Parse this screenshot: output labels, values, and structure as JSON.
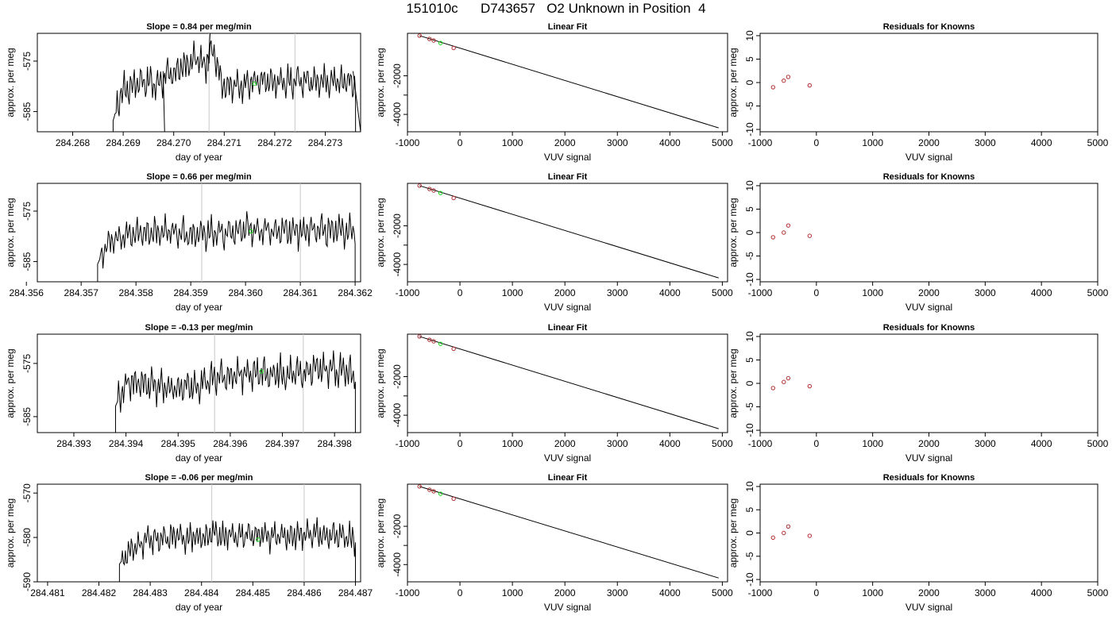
{
  "page_title": "151010c      D743657   O2 Unknown in Position  4",
  "chart_data": [
    {
      "type": "line",
      "title": "Slope =  0.84  per meg/min",
      "xlabel": "day of year",
      "ylabel": "approx. per meg",
      "xlim": [
        284.2673,
        284.2737
      ],
      "ylim": [
        -589,
        -569.5
      ],
      "x_ticks": [
        "284.268",
        "284.269",
        "284.270",
        "284.271",
        "284.272",
        "284.273"
      ],
      "y_ticks": [
        "-575",
        "-585"
      ],
      "vlines": [
        284.2707,
        284.2724
      ],
      "marker": {
        "x": 284.2716,
        "y": -579.5
      },
      "series_x": [
        284.2688,
        284.2736
      ],
      "trace_level": [
        -586.8,
        -581,
        -580,
        -579.2,
        -578.8,
        -579.8,
        -578.4,
        -577.8,
        -576.5,
        -575.6,
        -574.3,
        -576,
        -572,
        -579.5,
        -580.2,
        -579.8,
        -579.4,
        -579.1,
        -579.2,
        -579.4,
        -579.3,
        -579,
        -578.9,
        -579,
        -578.8,
        -578.9,
        -579.1,
        -578.9,
        -579.2,
        -579.4
      ],
      "gaps": [
        [
          284.26979,
          284.26982,
          -589
        ],
        [
          284.27068,
          284.27072,
          -569.5
        ],
        [
          284.27355,
          284.2737,
          -589
        ]
      ]
    },
    {
      "type": "line",
      "title": "Slope =  0.66  per meg/min",
      "xlabel": "day of year",
      "ylabel": "approx. per meg",
      "xlim": [
        284.3562,
        284.3621
      ],
      "ylim": [
        -589,
        -569.5
      ],
      "x_ticks": [
        "284.356",
        "284.357",
        "284.358",
        "284.359",
        "284.360",
        "284.361",
        "284.362"
      ],
      "y_ticks": [
        "-575",
        "-585"
      ],
      "vlines": [
        284.3592,
        284.361
      ],
      "marker": {
        "x": 284.3601,
        "y": -579
      },
      "series_x": [
        284.3573,
        284.362
      ],
      "trace_level": [
        -585.5,
        -581.5,
        -580.5,
        -579.9,
        -579.5,
        -579.3,
        -579.1,
        -579,
        -579.2,
        -579.4,
        -579.6,
        -579.5,
        -579.6,
        -579.4,
        -579.2,
        -579,
        -578.9,
        -578.7,
        -578.7,
        -578.8,
        -578.9,
        -579.1,
        -579,
        -578.9,
        -579,
        -579.1,
        -578.7,
        -578.6,
        -578.7,
        -579
      ]
    },
    {
      "type": "line",
      "title": "Slope =  -0.13  per meg/min",
      "xlabel": "day of year",
      "ylabel": "approx. per meg",
      "xlim": [
        284.3923,
        284.3985
      ],
      "ylim": [
        -588,
        -569.5
      ],
      "x_ticks": [
        "284.393",
        "284.394",
        "284.395",
        "284.396",
        "284.397",
        "284.398"
      ],
      "y_ticks": [
        "-575",
        "-585"
      ],
      "vlines": [
        284.3957,
        284.3974
      ],
      "marker": {
        "x": 284.3966,
        "y": -576.5
      },
      "series_x": [
        284.3938,
        284.3984
      ],
      "trace_level": [
        -583,
        -579.5,
        -578.4,
        -578.5,
        -579,
        -579.5,
        -579.6,
        -579.5,
        -579.7,
        -579.3,
        -578.9,
        -578.3,
        -577.8,
        -577.5,
        -577.2,
        -577,
        -577.1,
        -576.9,
        -576.8,
        -576.9,
        -577,
        -577.3,
        -577.1,
        -576.8,
        -576.2,
        -576,
        -575.8,
        -576.3,
        -576.6,
        -577.1
      ]
    },
    {
      "type": "line",
      "title": "Slope =  -0.06  per meg/min",
      "xlabel": "day of year",
      "ylabel": "approx. per meg",
      "xlim": [
        284.4808,
        284.4871
      ],
      "ylim": [
        -590,
        -568
      ],
      "x_ticks": [
        "284.481",
        "284.482",
        "284.483",
        "284.484",
        "284.485",
        "284.486",
        "284.487"
      ],
      "y_ticks": [
        "-570",
        "-580",
        "-590"
      ],
      "vlines": [
        284.4842,
        284.486
      ],
      "marker": {
        "x": 284.4851,
        "y": -580.5
      },
      "series_x": [
        284.4824,
        284.487
      ],
      "trace_level": [
        -586,
        -583.5,
        -582,
        -580.8,
        -580.5,
        -580.3,
        -579.8,
        -579.7,
        -579.9,
        -580,
        -579.8,
        -579.5,
        -579.3,
        -579.5,
        -579.8,
        -579.7,
        -579.6,
        -579.5,
        -579.6,
        -579.8,
        -579.7,
        -579.4,
        -579.5,
        -579.6,
        -579.5,
        -579.3,
        -579.6,
        -579.8,
        -579.9,
        -580.2
      ]
    },
    {
      "type": "scatter",
      "title": "Linear Fit",
      "xlabel": "VUV signal",
      "ylabel": "approx. per meg",
      "xlim": [
        -1000,
        5100
      ],
      "ylim": [
        -4900,
        200
      ],
      "x_ticks": [
        -1000,
        0,
        1000,
        2000,
        3000,
        4000,
        5000
      ],
      "y_ticks": [
        -2000,
        -3000,
        -4000
      ],
      "y_ticks_shown": [
        "-2000",
        "-4000"
      ],
      "known_points": [
        {
          "x": -770,
          "y": 80
        },
        {
          "x": -580,
          "y": -90
        },
        {
          "x": -500,
          "y": -170
        },
        {
          "x": -120,
          "y": -560
        }
      ],
      "unknown_point": {
        "x": -370,
        "y": -300
      },
      "fit_line": {
        "x": [
          -770,
          4930
        ],
        "y": [
          80,
          -4700
        ]
      }
    },
    {
      "type": "scatter",
      "title": "Linear Fit",
      "xlabel": "VUV signal",
      "ylabel": "approx. per meg",
      "xlim": [
        -1000,
        5100
      ],
      "ylim": [
        -4900,
        200
      ],
      "x_ticks": [
        -1000,
        0,
        1000,
        2000,
        3000,
        4000,
        5000
      ],
      "y_ticks": [
        -2000,
        -3000,
        -4000
      ],
      "y_ticks_shown": [
        "-2000",
        "-4000"
      ],
      "known_points": [
        {
          "x": -770,
          "y": 80
        },
        {
          "x": -580,
          "y": -90
        },
        {
          "x": -500,
          "y": -170
        },
        {
          "x": -120,
          "y": -560
        }
      ],
      "unknown_point": {
        "x": -370,
        "y": -300
      },
      "fit_line": {
        "x": [
          -770,
          4930
        ],
        "y": [
          80,
          -4700
        ]
      }
    },
    {
      "type": "scatter",
      "title": "Linear Fit",
      "xlabel": "VUV signal",
      "ylabel": "approx. per meg",
      "xlim": [
        -1000,
        5100
      ],
      "ylim": [
        -4900,
        200
      ],
      "x_ticks": [
        -1000,
        0,
        1000,
        2000,
        3000,
        4000,
        5000
      ],
      "y_ticks": [
        -2000,
        -3000,
        -4000
      ],
      "y_ticks_shown": [
        "-2000",
        "-4000"
      ],
      "known_points": [
        {
          "x": -770,
          "y": 80
        },
        {
          "x": -580,
          "y": -90
        },
        {
          "x": -500,
          "y": -170
        },
        {
          "x": -120,
          "y": -560
        }
      ],
      "unknown_point": {
        "x": -370,
        "y": -300
      },
      "fit_line": {
        "x": [
          -770,
          4930
        ],
        "y": [
          80,
          -4700
        ]
      }
    },
    {
      "type": "scatter",
      "title": "Linear Fit",
      "xlabel": "VUV signal",
      "ylabel": "approx. per meg",
      "xlim": [
        -1000,
        5100
      ],
      "ylim": [
        -4900,
        200
      ],
      "x_ticks": [
        -1000,
        0,
        1000,
        2000,
        3000,
        4000,
        5000
      ],
      "y_ticks": [
        -2000,
        -3000,
        -4000
      ],
      "y_ticks_shown": [
        "-2000",
        "-4000"
      ],
      "known_points": [
        {
          "x": -770,
          "y": 80
        },
        {
          "x": -580,
          "y": -90
        },
        {
          "x": -500,
          "y": -170
        },
        {
          "x": -120,
          "y": -560
        }
      ],
      "unknown_point": {
        "x": -370,
        "y": -300
      },
      "fit_line": {
        "x": [
          -770,
          4930
        ],
        "y": [
          80,
          -4700
        ]
      }
    },
    {
      "type": "scatter",
      "title": "Residuals for Knowns",
      "xlabel": "VUV signal",
      "ylabel": "approx. per meg",
      "xlim": [
        -1000,
        5000
      ],
      "ylim": [
        -10.5,
        10.5
      ],
      "x_ticks": [
        -1000,
        0,
        1000,
        2000,
        3000,
        4000,
        5000
      ],
      "y_ticks": [
        -10,
        -5,
        0,
        5,
        10
      ],
      "points": [
        {
          "x": -770,
          "y": -1
        },
        {
          "x": -580,
          "y": 0.4
        },
        {
          "x": -500,
          "y": 1.2
        },
        {
          "x": -120,
          "y": -0.6
        }
      ]
    },
    {
      "type": "scatter",
      "title": "Residuals for Knowns",
      "xlabel": "VUV signal",
      "ylabel": "approx. per meg",
      "xlim": [
        -1000,
        5000
      ],
      "ylim": [
        -10.5,
        10.5
      ],
      "x_ticks": [
        -1000,
        0,
        1000,
        2000,
        3000,
        4000,
        5000
      ],
      "y_ticks": [
        -10,
        -5,
        0,
        5,
        10
      ],
      "points": [
        {
          "x": -770,
          "y": -1
        },
        {
          "x": -580,
          "y": 0
        },
        {
          "x": -500,
          "y": 1.5
        },
        {
          "x": -120,
          "y": -0.7
        }
      ]
    },
    {
      "type": "scatter",
      "title": "Residuals for Knowns",
      "xlabel": "VUV signal",
      "ylabel": "approx. per meg",
      "xlim": [
        -1000,
        5000
      ],
      "ylim": [
        -10.5,
        10.5
      ],
      "x_ticks": [
        -1000,
        0,
        1000,
        2000,
        3000,
        4000,
        5000
      ],
      "y_ticks": [
        -10,
        -5,
        0,
        5,
        10
      ],
      "points": [
        {
          "x": -770,
          "y": -1
        },
        {
          "x": -580,
          "y": 0.3
        },
        {
          "x": -500,
          "y": 1.1
        },
        {
          "x": -120,
          "y": -0.6
        }
      ]
    },
    {
      "type": "scatter",
      "title": "Residuals for Knowns",
      "xlabel": "VUV signal",
      "ylabel": "approx. per meg",
      "xlim": [
        -1000,
        5000
      ],
      "ylim": [
        -10.5,
        10.5
      ],
      "x_ticks": [
        -1000,
        0,
        1000,
        2000,
        3000,
        4000,
        5000
      ],
      "y_ticks": [
        -10,
        -5,
        0,
        5,
        10
      ],
      "points": [
        {
          "x": -770,
          "y": -1
        },
        {
          "x": -580,
          "y": 0
        },
        {
          "x": -500,
          "y": 1.4
        },
        {
          "x": -120,
          "y": -0.6
        }
      ]
    }
  ]
}
